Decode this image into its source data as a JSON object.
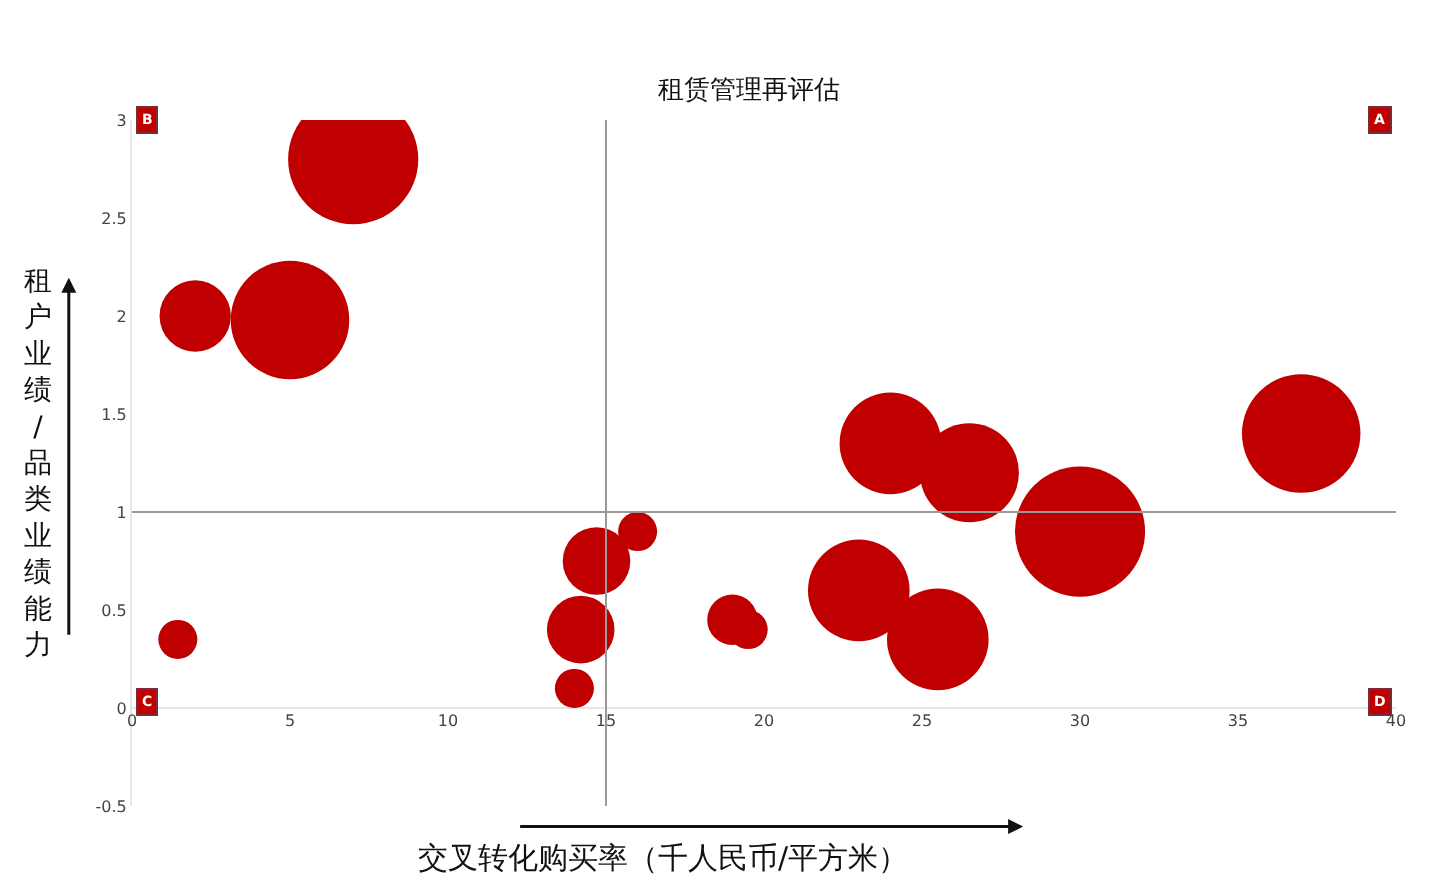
{
  "chart_data": {
    "type": "bubble",
    "title": "租赁管理再评估",
    "xlabel": "交叉转化购买率（千人民币/平方米）",
    "ylabel": "租户业绩/品类业绩能力",
    "x": [
      7.0,
      2.0,
      5.0,
      1.45,
      14.0,
      14.2,
      14.7,
      16.0,
      19.0,
      19.5,
      23.0,
      25.5,
      24.0,
      26.5,
      30.0,
      37.0
    ],
    "values": [
      2.8,
      2.0,
      1.98,
      0.35,
      0.1,
      0.4,
      0.75,
      0.9,
      0.45,
      0.4,
      0.6,
      0.35,
      1.35,
      1.2,
      0.9,
      1.4
    ],
    "sizes": [
      1,
      0.3,
      0.83,
      0.09,
      0.09,
      0.27,
      0.27,
      0.09,
      0.15,
      0.09,
      0.61,
      0.61,
      0.61,
      0.58,
      1,
      0.83
    ],
    "color": "#c00000",
    "xlim": [
      0,
      40
    ],
    "xticks": [
      0,
      5,
      10,
      15,
      20,
      25,
      30,
      35,
      40
    ],
    "ylim": [
      -0.5,
      3
    ],
    "yticks": [
      -0.5,
      0,
      0.5,
      1,
      1.5,
      2,
      2.5,
      3
    ],
    "ref_lines": [
      {
        "axis": "x",
        "value": 15,
        "color": "#999999"
      },
      {
        "axis": "y",
        "value": 1,
        "color": "#999999"
      }
    ],
    "annotations": [
      "B",
      "A",
      "C",
      "D"
    ],
    "marker": "circle"
  }
}
